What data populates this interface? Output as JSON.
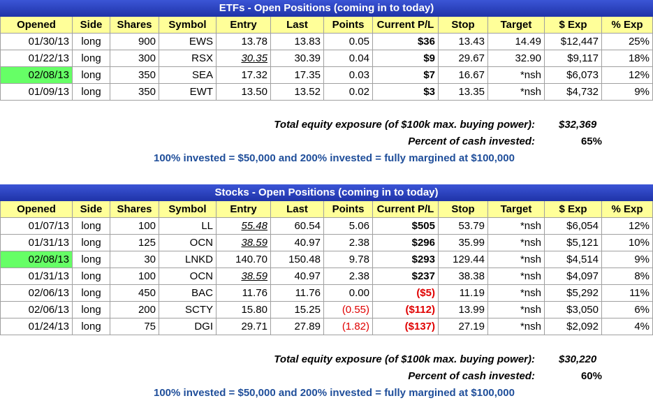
{
  "sections": [
    {
      "title": "ETFs - Open Positions (coming in to today)",
      "headers": [
        "Opened",
        "Side",
        "Shares",
        "Symbol",
        "Entry",
        "Last",
        "Points",
        "Current P/L",
        "Stop",
        "Target",
        "$ Exp",
        "% Exp"
      ],
      "rows": [
        [
          "01/30/13",
          "long",
          "900",
          "EWS",
          "13.78",
          "13.83",
          "0.05",
          "$36",
          "13.43",
          "14.49",
          "$12,447",
          "25%"
        ],
        [
          "01/22/13",
          "long",
          "300",
          "RSX",
          "30.35",
          "30.39",
          "0.04",
          "$9",
          "29.67",
          "32.90",
          "$9,117",
          "18%"
        ],
        [
          "02/08/13",
          "long",
          "350",
          "SEA",
          "17.32",
          "17.35",
          "0.03",
          "$7",
          "16.67",
          "*nsh",
          "$6,073",
          "12%"
        ],
        [
          "01/09/13",
          "long",
          "350",
          "EWT",
          "13.50",
          "13.52",
          "0.02",
          "$3",
          "13.35",
          "*nsh",
          "$4,732",
          "9%"
        ]
      ],
      "summary": {
        "exposure_label": "Total equity exposure (of $100k max. buying power):",
        "exposure_value": "$32,369",
        "percent_label": "Percent of cash invested:",
        "percent_value": "65%",
        "note": "100% invested = $50,000 and 200% invested = fully margined at $100,000"
      }
    },
    {
      "title": "Stocks - Open Positions (coming in to today)",
      "headers": [
        "Opened",
        "Side",
        "Shares",
        "Symbol",
        "Entry",
        "Last",
        "Points",
        "Current P/L",
        "Stop",
        "Target",
        "$ Exp",
        "% Exp"
      ],
      "rows": [
        [
          "01/07/13",
          "long",
          "100",
          "LL",
          "55.48",
          "60.54",
          "5.06",
          "$505",
          "53.79",
          "*nsh",
          "$6,054",
          "12%"
        ],
        [
          "01/31/13",
          "long",
          "125",
          "OCN",
          "38.59",
          "40.97",
          "2.38",
          "$296",
          "35.99",
          "*nsh",
          "$5,121",
          "10%"
        ],
        [
          "02/08/13",
          "long",
          "30",
          "LNKD",
          "140.70",
          "150.48",
          "9.78",
          "$293",
          "129.44",
          "*nsh",
          "$4,514",
          "9%"
        ],
        [
          "01/31/13",
          "long",
          "100",
          "OCN",
          "38.59",
          "40.97",
          "2.38",
          "$237",
          "38.38",
          "*nsh",
          "$4,097",
          "8%"
        ],
        [
          "02/06/13",
          "long",
          "450",
          "BAC",
          "11.76",
          "11.76",
          "0.00",
          "($5)",
          "11.19",
          "*nsh",
          "$5,292",
          "11%"
        ],
        [
          "02/06/13",
          "long",
          "200",
          "SCTY",
          "15.80",
          "15.25",
          "(0.55)",
          "($112)",
          "13.99",
          "*nsh",
          "$3,050",
          "6%"
        ],
        [
          "01/24/13",
          "long",
          "75",
          "DGI",
          "29.71",
          "27.89",
          "(1.82)",
          "($137)",
          "27.19",
          "*nsh",
          "$2,092",
          "4%"
        ]
      ],
      "summary": {
        "exposure_label": "Total equity exposure (of $100k max. buying power):",
        "exposure_value": "$30,220",
        "percent_label": "Percent of cash invested:",
        "percent_value": "60%",
        "note": "100% invested = $50,000 and 200% invested = fully margined at $100,000"
      }
    }
  ]
}
